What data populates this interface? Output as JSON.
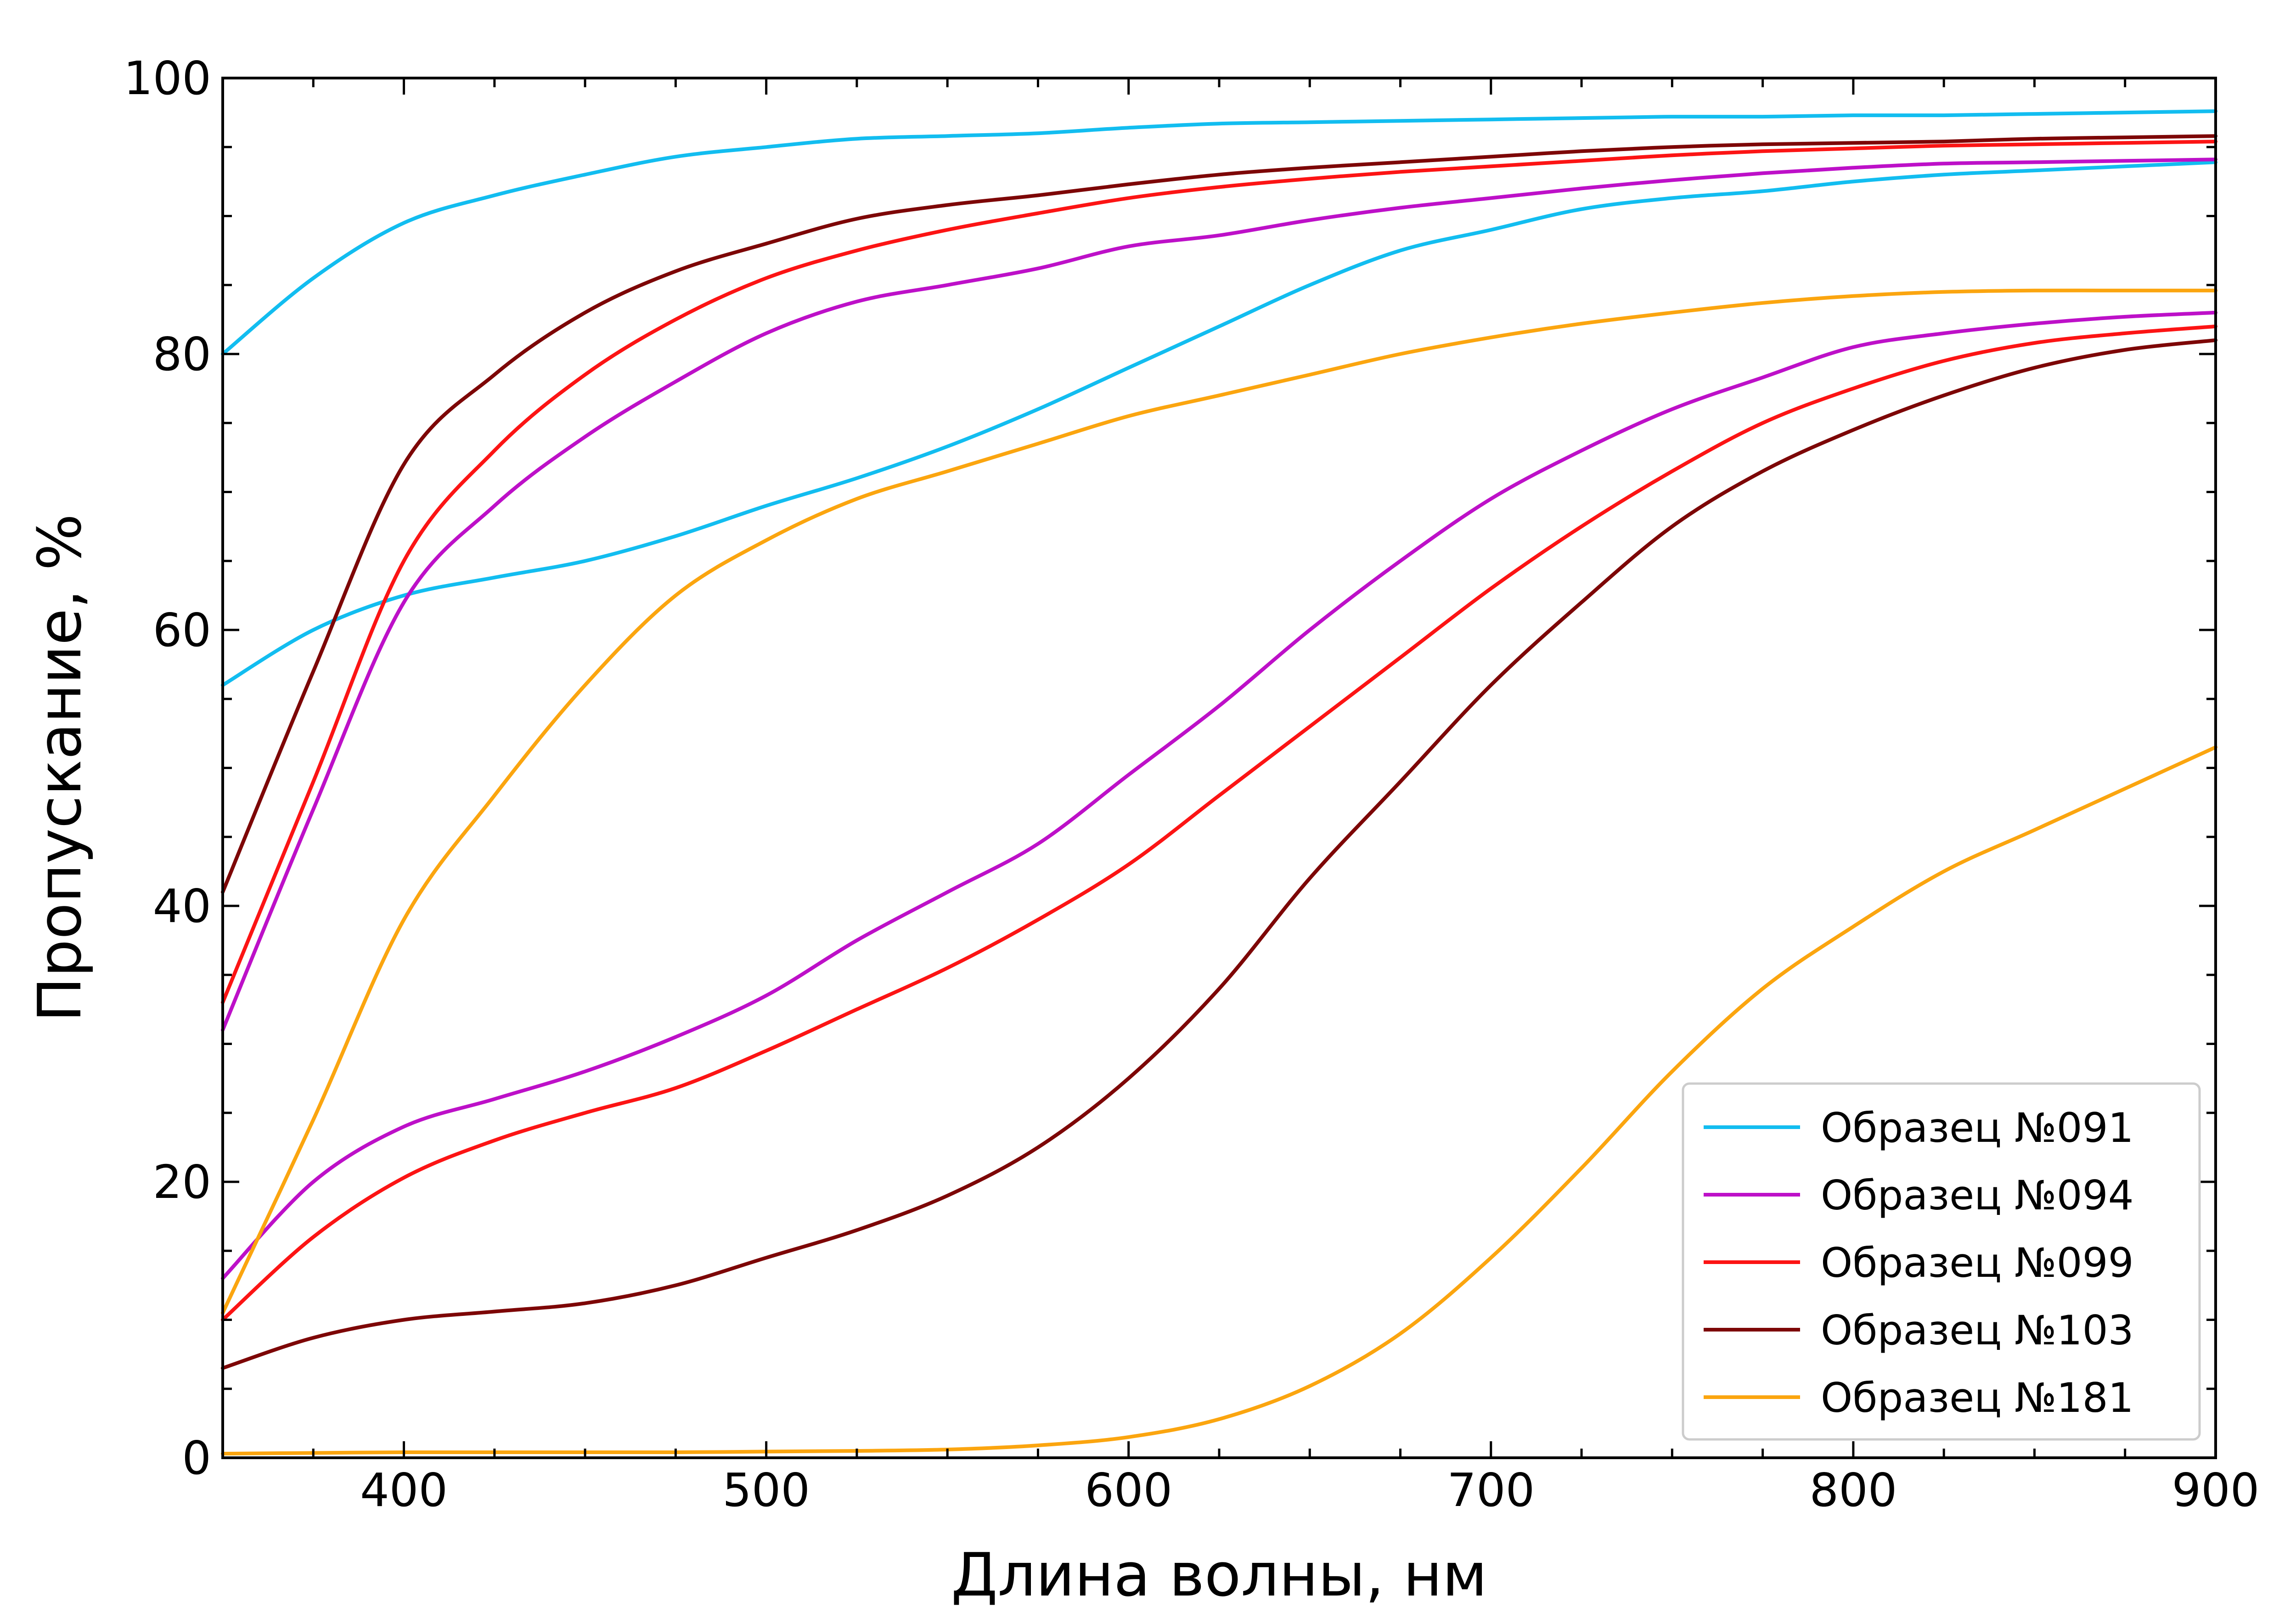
{
  "chart_data": {
    "type": "line",
    "xlabel": "Длина волны, нм",
    "ylabel": "Пропускание, %",
    "xlim": [
      350,
      900
    ],
    "ylim": [
      0,
      100
    ],
    "x_ticks": [
      400,
      500,
      600,
      700,
      800,
      900
    ],
    "y_ticks": [
      0,
      20,
      40,
      60,
      80,
      100
    ],
    "grid": false,
    "legend_position": "bottom-right",
    "x": [
      350,
      375,
      400,
      425,
      450,
      475,
      500,
      525,
      550,
      575,
      600,
      625,
      650,
      675,
      700,
      725,
      750,
      775,
      800,
      825,
      850,
      875,
      900
    ],
    "series": [
      {
        "name": "Образец №091",
        "color": "#12bdf0",
        "values": [
          80,
          85.5,
          89.5,
          91.5,
          93,
          94.3,
          95,
          95.6,
          95.8,
          96,
          96.4,
          96.7,
          96.8,
          96.9,
          97,
          97.1,
          97.2,
          97.2,
          97.3,
          97.3,
          97.4,
          97.5,
          97.6
        ]
      },
      {
        "name": "",
        "color": "#12bdf0",
        "values": [
          56,
          60,
          62.5,
          63.8,
          65,
          66.8,
          69,
          71,
          73.3,
          76,
          79,
          82,
          85,
          87.5,
          89,
          90.5,
          91.3,
          91.8,
          92.5,
          93,
          93.3,
          93.6,
          93.9
        ]
      },
      {
        "name": "Образец №094",
        "color": "#bd10c8",
        "values": [
          31,
          47,
          62,
          69,
          74,
          78,
          81.5,
          83.8,
          85,
          86.2,
          87.8,
          88.6,
          89.7,
          90.6,
          91.3,
          92,
          92.6,
          93.1,
          93.5,
          93.8,
          93.9,
          94,
          94.1
        ]
      },
      {
        "name": "",
        "color": "#bd10c8",
        "values": [
          13,
          20,
          24,
          26,
          28,
          30.5,
          33.5,
          37.5,
          41,
          44.5,
          49.5,
          54.5,
          60,
          65,
          69.5,
          73,
          76,
          78.3,
          80.5,
          81.5,
          82.2,
          82.7,
          83
        ]
      },
      {
        "name": "Образец №099",
        "color": "#fc1414",
        "values": [
          33,
          49,
          65,
          73,
          78.5,
          82.5,
          85.5,
          87.5,
          89,
          90.2,
          91.3,
          92.1,
          92.7,
          93.2,
          93.6,
          94,
          94.4,
          94.7,
          94.9,
          95.1,
          95.2,
          95.3,
          95.4
        ]
      },
      {
        "name": "",
        "color": "#fc1414",
        "values": [
          10,
          16,
          20.3,
          23,
          25,
          26.8,
          29.5,
          32.5,
          35.5,
          39,
          43,
          48,
          53,
          58,
          63,
          67.5,
          71.5,
          75,
          77.5,
          79.5,
          80.8,
          81.5,
          82
        ]
      },
      {
        "name": "Образец №103",
        "color": "#7d0606",
        "values": [
          41,
          57,
          72,
          78.5,
          83,
          86,
          88,
          89.8,
          90.8,
          91.5,
          92.3,
          93,
          93.5,
          93.9,
          94.3,
          94.7,
          95,
          95.2,
          95.3,
          95.4,
          95.6,
          95.7,
          95.8
        ]
      },
      {
        "name": "",
        "color": "#7d0606",
        "values": [
          6.5,
          8.7,
          10,
          10.6,
          11.2,
          12.5,
          14.5,
          16.5,
          19,
          22.5,
          27.5,
          34,
          42,
          49,
          56,
          62,
          67.5,
          71.5,
          74.5,
          77,
          79,
          80.3,
          81
        ]
      },
      {
        "name": "Образец №181",
        "color": "#fba50f",
        "values": [
          0.3,
          0.35,
          0.4,
          0.4,
          0.4,
          0.4,
          0.45,
          0.5,
          0.6,
          0.9,
          1.5,
          2.8,
          5.2,
          9,
          14.5,
          21,
          28,
          34,
          38.5,
          42.5,
          45.5,
          48.5,
          51.5
        ]
      },
      {
        "name": "",
        "color": "#fba50f",
        "values": [
          10.5,
          24.5,
          39,
          48,
          56,
          62.5,
          66.5,
          69.5,
          71.5,
          73.5,
          75.5,
          77,
          78.5,
          80,
          81.2,
          82.2,
          83,
          83.7,
          84.2,
          84.5,
          84.6,
          84.6,
          84.6
        ]
      }
    ]
  }
}
